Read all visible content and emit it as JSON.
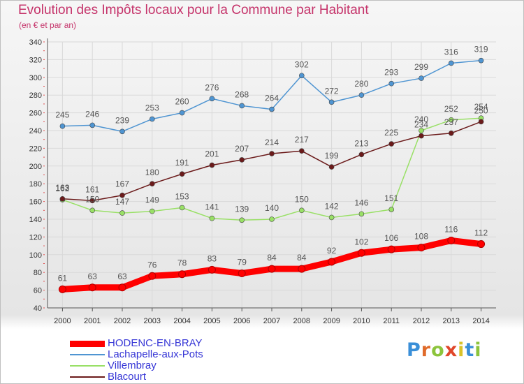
{
  "title": "Evolution des Impôts locaux pour la Commune par Habitant",
  "subtitle": "(en € et par an)",
  "logo": {
    "letters": [
      "P",
      "r",
      "o",
      "x",
      "i",
      "t",
      "i"
    ],
    "colors": [
      "#3a8fd8",
      "#e06b2a",
      "#8cc43c",
      "#e0462a",
      "#d9c22a",
      "#3a8fd8",
      "#8cc43c"
    ]
  },
  "chart_data": {
    "type": "line",
    "x": [
      "2000",
      "2001",
      "2002",
      "2003",
      "2004",
      "2005",
      "2006",
      "2007",
      "2008",
      "2009",
      "2010",
      "2011",
      "2012",
      "2013",
      "2014"
    ],
    "ylim": [
      40,
      340
    ],
    "yticks": [
      40,
      60,
      80,
      100,
      120,
      140,
      160,
      180,
      200,
      220,
      240,
      260,
      280,
      300,
      320,
      340
    ],
    "grid": true,
    "legend_position": "bottom-left",
    "series": [
      {
        "name": "HODENC-EN-BRAY",
        "color": "#ff0000",
        "values": [
          61,
          63,
          63,
          76,
          78,
          83,
          79,
          84,
          84,
          92,
          102,
          106,
          108,
          116,
          112
        ]
      },
      {
        "name": "Lachapelle-aux-Pots",
        "color": "#4f95d2",
        "values": [
          245,
          246,
          239,
          253,
          260,
          276,
          268,
          264,
          302,
          272,
          280,
          293,
          299,
          316,
          319
        ]
      },
      {
        "name": "Villembray",
        "color": "#99e066",
        "values": [
          162,
          150,
          147,
          149,
          153,
          141,
          139,
          140,
          150,
          142,
          146,
          151,
          240,
          252,
          254
        ]
      },
      {
        "name": "Blacourt",
        "color": "#6b1a1a",
        "values": [
          163,
          161,
          167,
          180,
          191,
          201,
          207,
          214,
          217,
          199,
          213,
          225,
          234,
          237,
          250
        ]
      }
    ],
    "data_labels": [
      {
        "series": 0,
        "values": [
          "61",
          "63",
          "63",
          "76",
          "78",
          "83",
          "79",
          "84",
          "84",
          "92",
          "102",
          "106",
          "108",
          "116",
          "112"
        ]
      },
      {
        "series": 1,
        "values": [
          "245",
          "246",
          "239",
          "253",
          "260",
          "276",
          "268",
          "264",
          "302",
          "272",
          "280",
          "293",
          "299",
          "316",
          "319"
        ]
      },
      {
        "series": 2,
        "values": [
          "162",
          "150",
          "147",
          "149",
          "153",
          "141",
          "139",
          "140",
          "150",
          "142",
          "146",
          "151",
          "240",
          "252",
          "254"
        ]
      },
      {
        "series": 3,
        "values": [
          "163",
          "161",
          "167",
          "180",
          "191",
          "201",
          "207",
          "214",
          "217",
          "199",
          "213",
          "225",
          "234",
          "237",
          "250"
        ]
      }
    ]
  }
}
